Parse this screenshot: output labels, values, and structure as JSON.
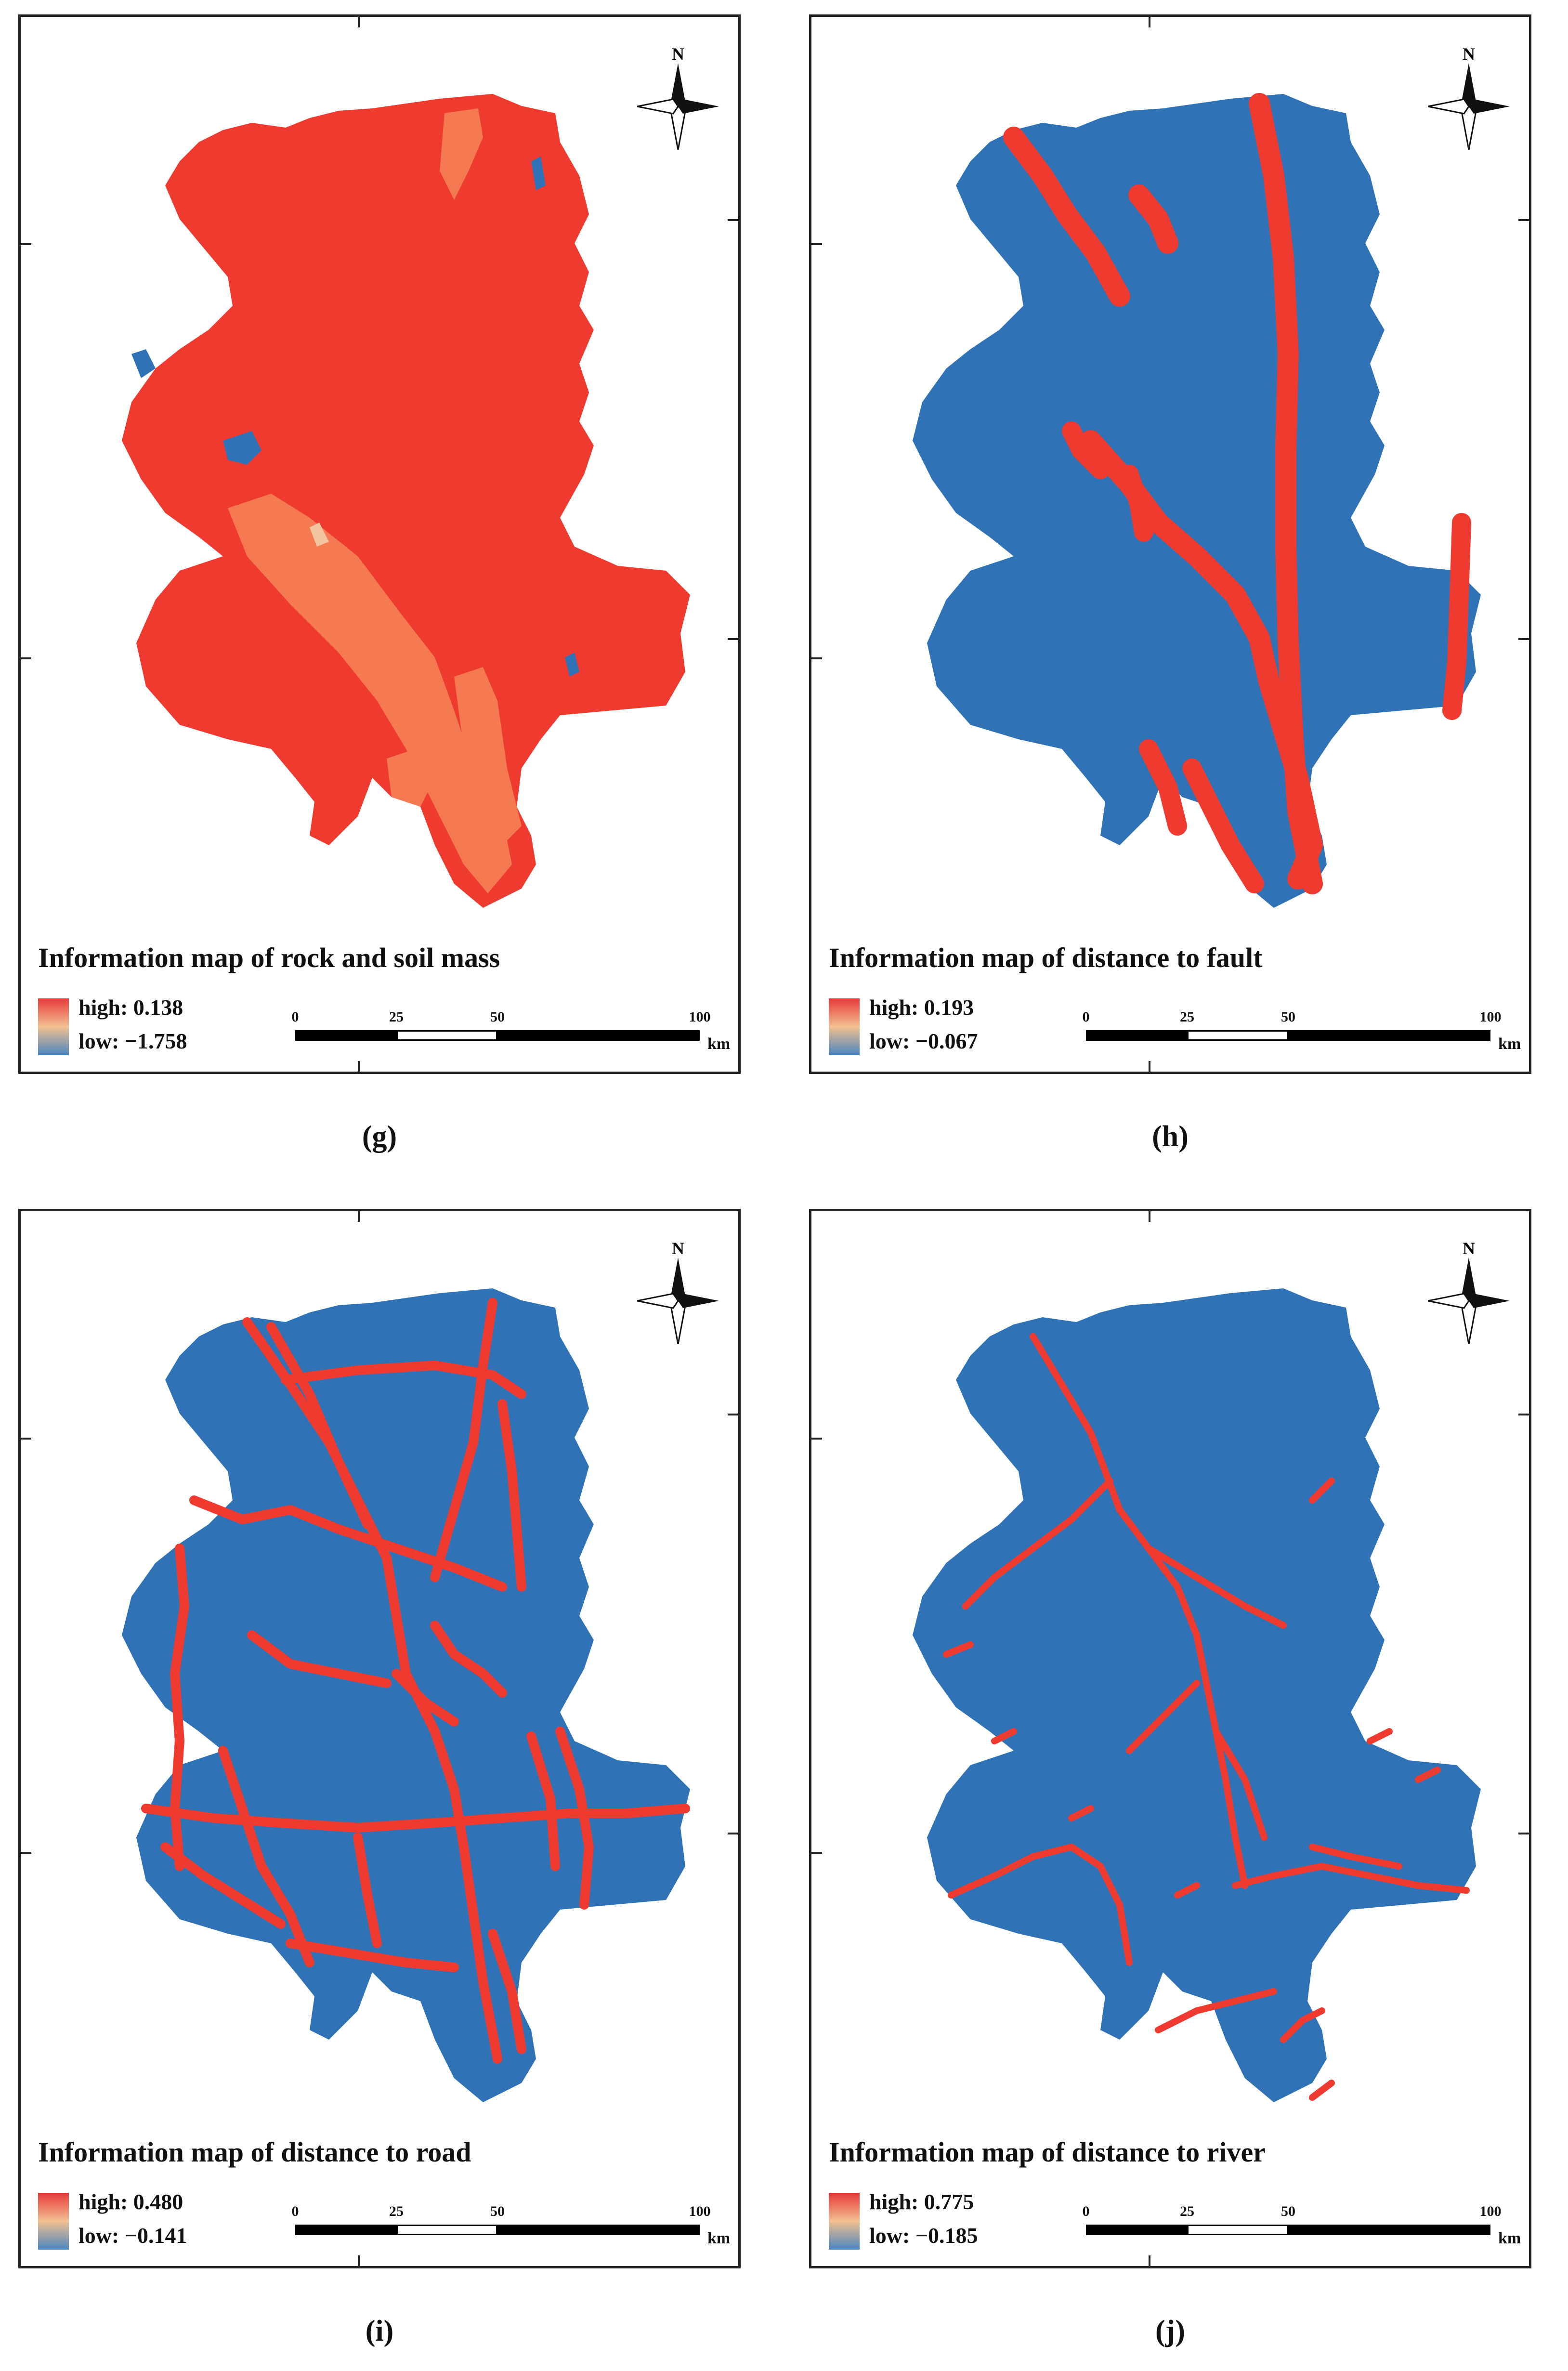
{
  "panels": [
    {
      "id": "g",
      "title": "Information map of rock and soil mass",
      "high": "high: 0.138",
      "low": "low: −1.758",
      "caption": "(g)"
    },
    {
      "id": "h",
      "title": "Information map of distance to fault",
      "high": "high: 0.193",
      "low": "low: −0.067",
      "caption": "(h)"
    },
    {
      "id": "i",
      "title": "Information map of distance to road",
      "high": "high: 0.480",
      "low": "low: −0.141",
      "caption": "(i)"
    },
    {
      "id": "j",
      "title": "Information map of distance to river",
      "high": "high: 0.775",
      "low": "low: −0.185",
      "caption": "(j)"
    }
  ],
  "scale": {
    "labels": [
      "0",
      "25",
      "50",
      "100"
    ],
    "unit": "km"
  },
  "north": "N",
  "colors": {
    "high": "#ef3a2f",
    "low": "#2f73b6",
    "mid": "#f6764f"
  }
}
